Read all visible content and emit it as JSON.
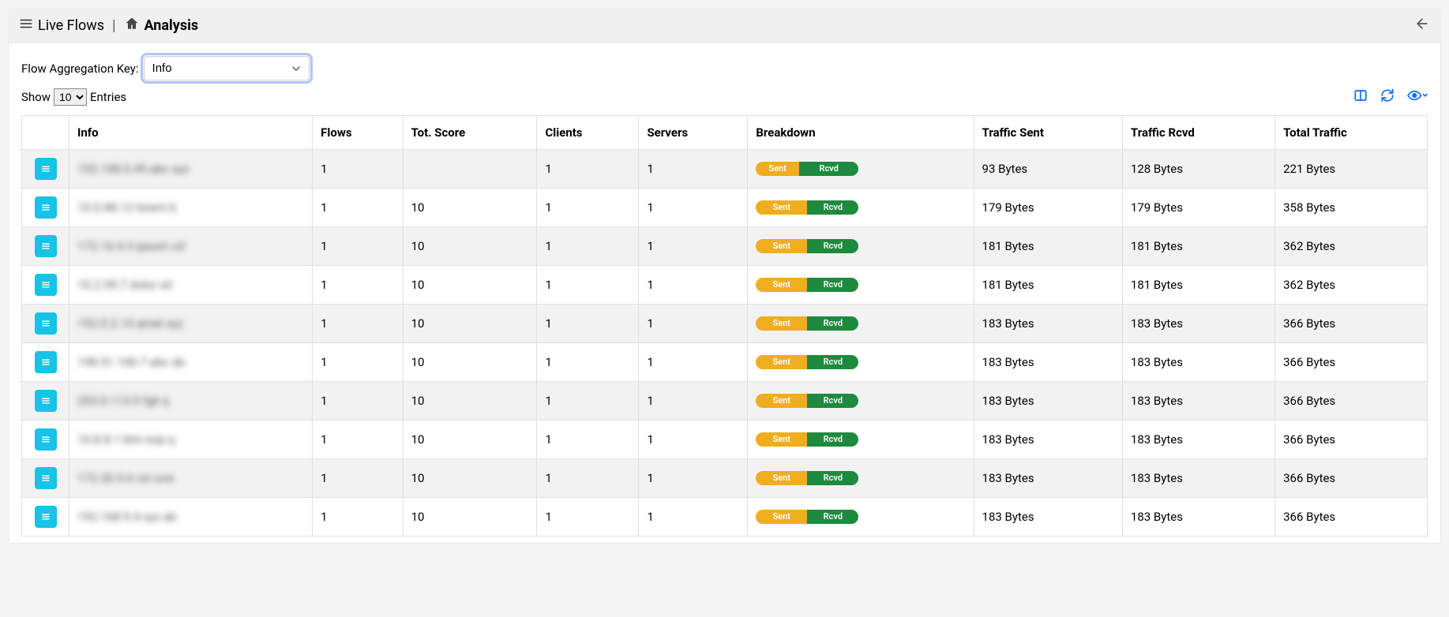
{
  "breadcrumb": {
    "root": "Live Flows",
    "current": "Analysis"
  },
  "controls": {
    "aggregation_label": "Flow Aggregation Key:",
    "aggregation_value": "Info",
    "show_label": "Show",
    "entries_value": "10",
    "entries_suffix": "Entries"
  },
  "table": {
    "headers": {
      "info": "Info",
      "flows": "Flows",
      "tot_score": "Tot. Score",
      "clients": "Clients",
      "servers": "Servers",
      "breakdown": "Breakdown",
      "traffic_sent": "Traffic Sent",
      "traffic_rcvd": "Traffic Rcvd",
      "total_traffic": "Total Traffic"
    },
    "breakdown_labels": {
      "sent": "Sent",
      "rcvd": "Rcvd"
    },
    "rows": [
      {
        "info": "192.168.0.45 abc xyz",
        "flows": "1",
        "tot_score": "",
        "clients": "1",
        "servers": "1",
        "sent_pct": 42,
        "traffic_sent": "93 Bytes",
        "traffic_rcvd": "128 Bytes",
        "total_traffic": "221 Bytes"
      },
      {
        "info": "10.0.88.12 lorem b",
        "flows": "1",
        "tot_score": "10",
        "clients": "1",
        "servers": "1",
        "sent_pct": 50,
        "traffic_sent": "179 Bytes",
        "traffic_rcvd": "179 Bytes",
        "total_traffic": "358 Bytes"
      },
      {
        "info": "172.16.4.3 ipsum cd",
        "flows": "1",
        "tot_score": "10",
        "clients": "1",
        "servers": "1",
        "sent_pct": 50,
        "traffic_sent": "181 Bytes",
        "traffic_rcvd": "181 Bytes",
        "total_traffic": "362 Bytes"
      },
      {
        "info": "10.2.99.7 dolor sit",
        "flows": "1",
        "tot_score": "10",
        "clients": "1",
        "servers": "1",
        "sent_pct": 50,
        "traffic_sent": "181 Bytes",
        "traffic_rcvd": "181 Bytes",
        "total_traffic": "362 Bytes"
      },
      {
        "info": "192.0.2.14 amet xyz",
        "flows": "1",
        "tot_score": "10",
        "clients": "1",
        "servers": "1",
        "sent_pct": 50,
        "traffic_sent": "183 Bytes",
        "traffic_rcvd": "183 Bytes",
        "total_traffic": "366 Bytes"
      },
      {
        "info": "198.51.100.7 abc de",
        "flows": "1",
        "tot_score": "10",
        "clients": "1",
        "servers": "1",
        "sent_pct": 50,
        "traffic_sent": "183 Bytes",
        "traffic_rcvd": "183 Bytes",
        "total_traffic": "366 Bytes"
      },
      {
        "info": "203.0.113.9 fgh ij",
        "flows": "1",
        "tot_score": "10",
        "clients": "1",
        "servers": "1",
        "sent_pct": 50,
        "traffic_sent": "183 Bytes",
        "traffic_rcvd": "183 Bytes",
        "total_traffic": "366 Bytes"
      },
      {
        "info": "10.8.8.1 klm nop q",
        "flows": "1",
        "tot_score": "10",
        "clients": "1",
        "servers": "1",
        "sent_pct": 50,
        "traffic_sent": "183 Bytes",
        "traffic_rcvd": "183 Bytes",
        "total_traffic": "366 Bytes"
      },
      {
        "info": "172.20.5.6 rst uvw",
        "flows": "1",
        "tot_score": "10",
        "clients": "1",
        "servers": "1",
        "sent_pct": 50,
        "traffic_sent": "183 Bytes",
        "traffic_rcvd": "183 Bytes",
        "total_traffic": "366 Bytes"
      },
      {
        "info": "192.168.9.4 xyz ab",
        "flows": "1",
        "tot_score": "10",
        "clients": "1",
        "servers": "1",
        "sent_pct": 50,
        "traffic_sent": "183 Bytes",
        "traffic_rcvd": "183 Bytes",
        "total_traffic": "366 Bytes"
      }
    ]
  },
  "colors": {
    "action_button_bg": "#17c3e6",
    "breakdown_sent_bg": "#f0ad1e",
    "breakdown_rcvd_bg": "#1d8a3e",
    "toolbar_icon": "#0d6efd",
    "header_bg": "#f0f0f0"
  }
}
